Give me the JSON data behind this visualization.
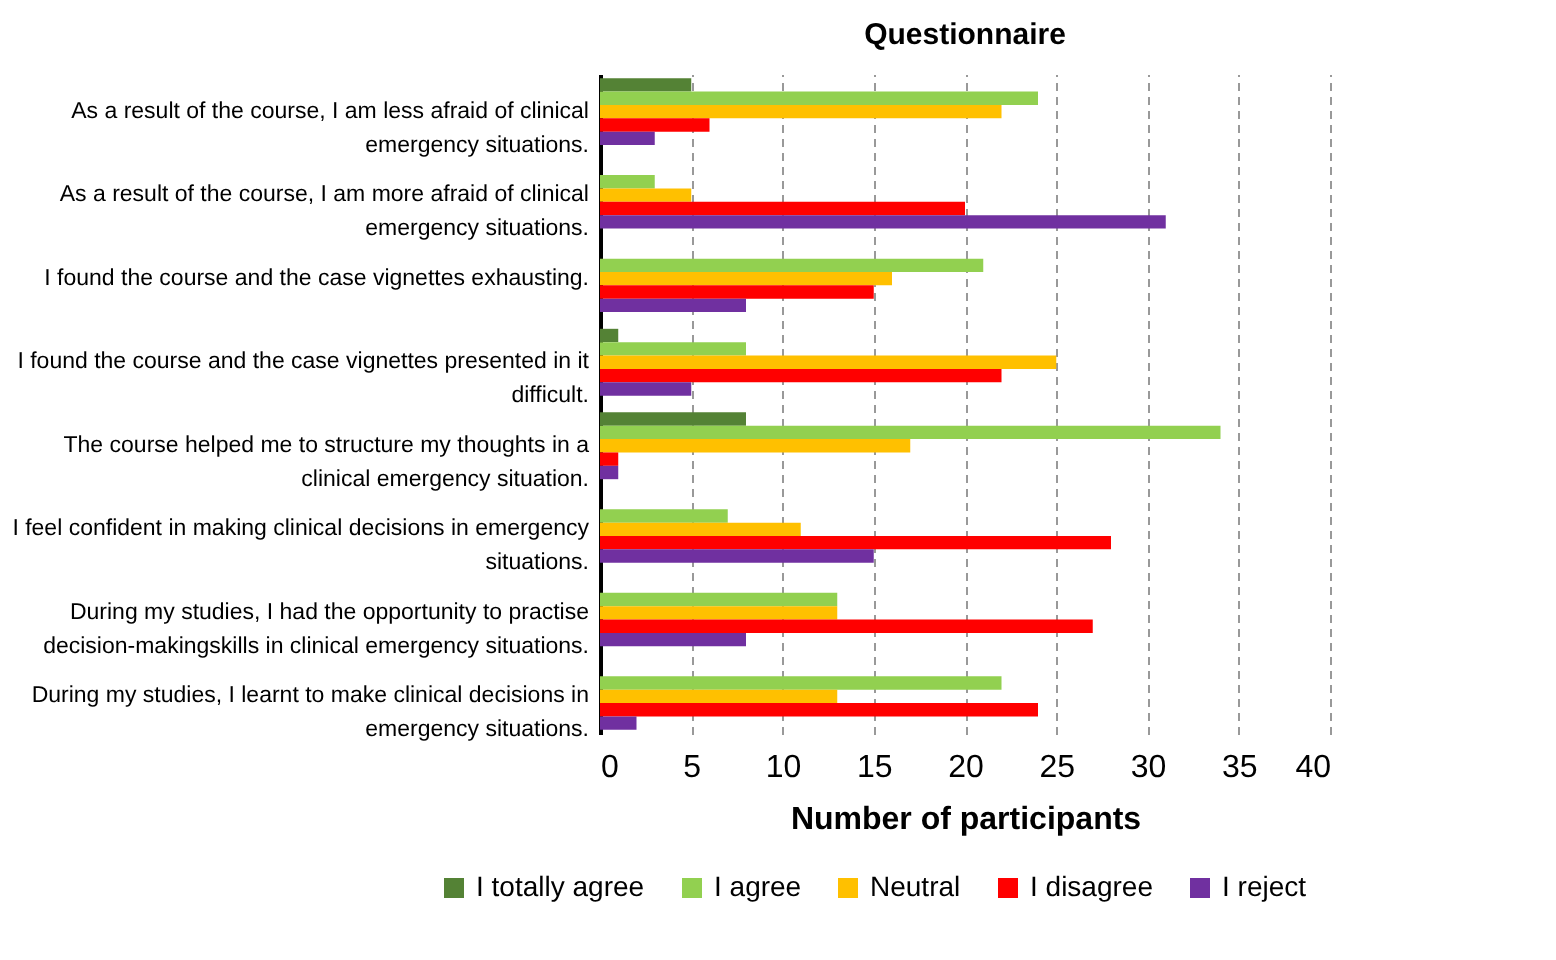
{
  "chart_data": {
    "type": "bar",
    "orientation": "horizontal",
    "title": "Questionnaire",
    "xlabel": "Number of participants",
    "categories": [
      "As a result of the course, I am less afraid of clinical emergency situations.",
      "As a result of the course, I am more afraid of clinical emergency situations.",
      "I found the course and the case vignettes exhausting.",
      "I found the course and the case vignettes presented in it difficult.",
      "The course helped me to structure my thoughts in a clinical emergency situation.",
      "I feel confident in making clinical decisions in emergency situations.",
      "During my studies, I had the opportunity to practise decision-makingskills in clinical emergency situations.",
      "During my studies, I learnt to make clinical decisions in emergency situations."
    ],
    "series": [
      {
        "name": "I totally agree",
        "color": "#548235",
        "values": [
          5,
          0,
          0,
          1,
          8,
          0,
          0,
          0
        ]
      },
      {
        "name": "I agree",
        "color": "#92d050",
        "values": [
          24,
          3,
          21,
          8,
          34,
          7,
          13,
          22
        ]
      },
      {
        "name": "Neutral",
        "color": "#ffc000",
        "values": [
          22,
          5,
          16,
          25,
          17,
          11,
          13,
          13
        ]
      },
      {
        "name": "I disagree",
        "color": "#ff0000",
        "values": [
          6,
          20,
          15,
          22,
          1,
          28,
          27,
          24
        ]
      },
      {
        "name": "I reject",
        "color": "#7030a0",
        "values": [
          3,
          31,
          8,
          5,
          1,
          15,
          8,
          2
        ]
      }
    ],
    "xlim": [
      0,
      40
    ],
    "xticks": [
      0,
      5,
      10,
      15,
      20,
      25,
      30,
      35,
      40
    ],
    "grid": "x",
    "legend": "bottom"
  }
}
